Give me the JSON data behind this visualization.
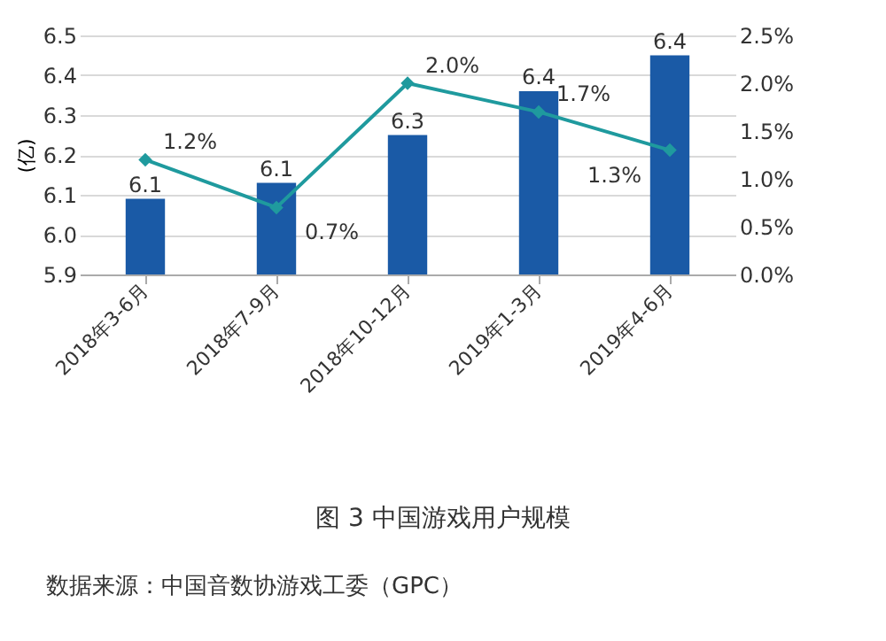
{
  "chart_data": {
    "type": "bar",
    "title": "图 3 中国游戏用户规模",
    "ylabel": "(亿)",
    "categories": [
      "2018年3-6月",
      "2018年7-9月",
      "2018年10-12月",
      "2019年1-3月",
      "2019年4-6月"
    ],
    "series": [
      {
        "color": "#1a5aa6",
        "values": [
          6.09,
          6.13,
          6.25,
          6.36,
          6.45
        ],
        "value_labels": [
          "6.1",
          "6.1",
          "6.3",
          "6.4",
          "6.4"
        ]
      },
      {
        "type": "line",
        "axis": "y2",
        "color": "#1f9a9e",
        "values": [
          1.2,
          0.7,
          2.0,
          1.7,
          1.3
        ],
        "value_labels": [
          "1.2%",
          "0.7%",
          "2.0%",
          "1.7%",
          "1.3%"
        ]
      }
    ],
    "ylim": [
      5.9,
      6.5
    ],
    "yticks": [
      5.9,
      {
        "value": 6.0,
        "label": "6.0"
      },
      6.1,
      6.2,
      6.3,
      6.4,
      6.5
    ],
    "y2lim": [
      0,
      2.5
    ],
    "y2ticks": [
      {
        "value": 0,
        "label": "0.0%"
      },
      {
        "value": 0.5,
        "label": "0.5%"
      },
      {
        "value": 1.0,
        "label": "1.0%"
      },
      {
        "value": 1.5,
        "label": "1.5%"
      },
      {
        "value": 2.0,
        "label": "2.0%"
      },
      {
        "value": 2.5,
        "label": "2.5%"
      }
    ],
    "grid": "y",
    "marker": "diamond",
    "line_style": "solid",
    "annotations": [
      "数据来源：中国音数协游戏工委（GPC）"
    ]
  }
}
